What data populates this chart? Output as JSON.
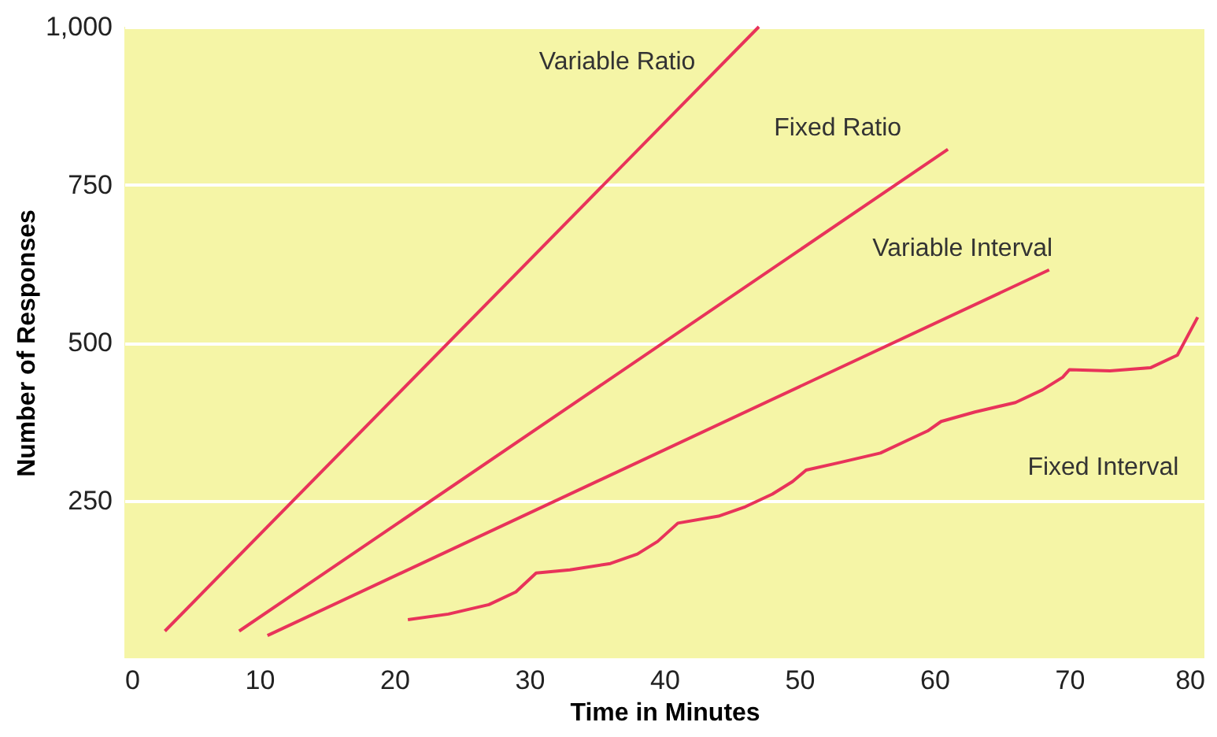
{
  "chart_data": {
    "type": "line",
    "xlabel": "Time in Minutes",
    "ylabel": "Number of Responses",
    "xlim": [
      0,
      80
    ],
    "xticks": [
      0,
      10,
      20,
      30,
      40,
      50,
      60,
      70,
      80
    ],
    "ylim": [
      0,
      1000
    ],
    "yticks": [
      250,
      500,
      750,
      {
        "value": 1000,
        "label": "1,000"
      }
    ],
    "grid": "y",
    "line_style": "solid",
    "marker": "none",
    "series": [
      {
        "name": "Variable Ratio",
        "color": "#e8335a",
        "x": [
          3,
          47
        ],
        "values": [
          43,
          1000
        ]
      },
      {
        "name": "Fixed Ratio",
        "color": "#e8335a",
        "x": [
          8.5,
          61
        ],
        "values": [
          43,
          806
        ]
      },
      {
        "name": "Variable Interval",
        "color": "#e8335a",
        "x": [
          10.6,
          68.5
        ],
        "values": [
          36,
          615
        ]
      },
      {
        "name": "Fixed Interval",
        "color": "#e8335a",
        "x": [
          21,
          24,
          27,
          29,
          30.5,
          33,
          36,
          38,
          39.5,
          41,
          44,
          46,
          48,
          49.5,
          50.5,
          53,
          56,
          58,
          59.5,
          60.5,
          63,
          66,
          68,
          69.5,
          70,
          73,
          76,
          78,
          79.5
        ],
        "values": [
          61,
          70,
          85,
          105,
          135,
          140,
          150,
          165,
          185,
          214,
          225,
          240,
          260,
          280,
          298,
          310,
          325,
          345,
          360,
          375,
          390,
          405,
          425,
          445,
          457,
          455,
          460,
          480,
          540
        ]
      }
    ]
  }
}
